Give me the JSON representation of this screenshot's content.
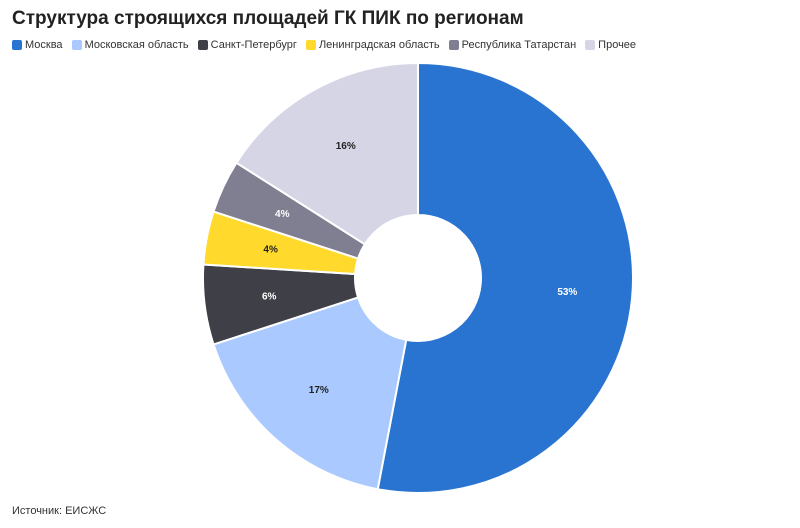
{
  "title": "Структура строящихся площадей ГК ПИК по регионам",
  "source": "Источник: ЕИСЖС",
  "chart_data": {
    "type": "pie",
    "variant": "donut",
    "title": "Структура строящихся площадей ГК ПИК по регионам",
    "legend_position": "top-left",
    "slices": [
      {
        "name": "Москва",
        "value": 53,
        "label": "53%",
        "color": "#2a74d1",
        "label_color": "#ffffff"
      },
      {
        "name": "Московская область",
        "value": 17,
        "label": "17%",
        "color": "#a9c9ff",
        "label_color": "#222222"
      },
      {
        "name": "Санкт-Петербург",
        "value": 6,
        "label": "6%",
        "color": "#3f3f48",
        "label_color": "#ffffff"
      },
      {
        "name": "Ленинградская область",
        "value": 4,
        "label": "4%",
        "color": "#ffd92b",
        "label_color": "#222222"
      },
      {
        "name": "Республика Татарстан",
        "value": 4,
        "label": "4%",
        "color": "#7f7f91",
        "label_color": "#ffffff"
      },
      {
        "name": "Прочее",
        "value": 16,
        "label": "16%",
        "color": "#d5d5e6",
        "label_color": "#222222"
      }
    ]
  }
}
